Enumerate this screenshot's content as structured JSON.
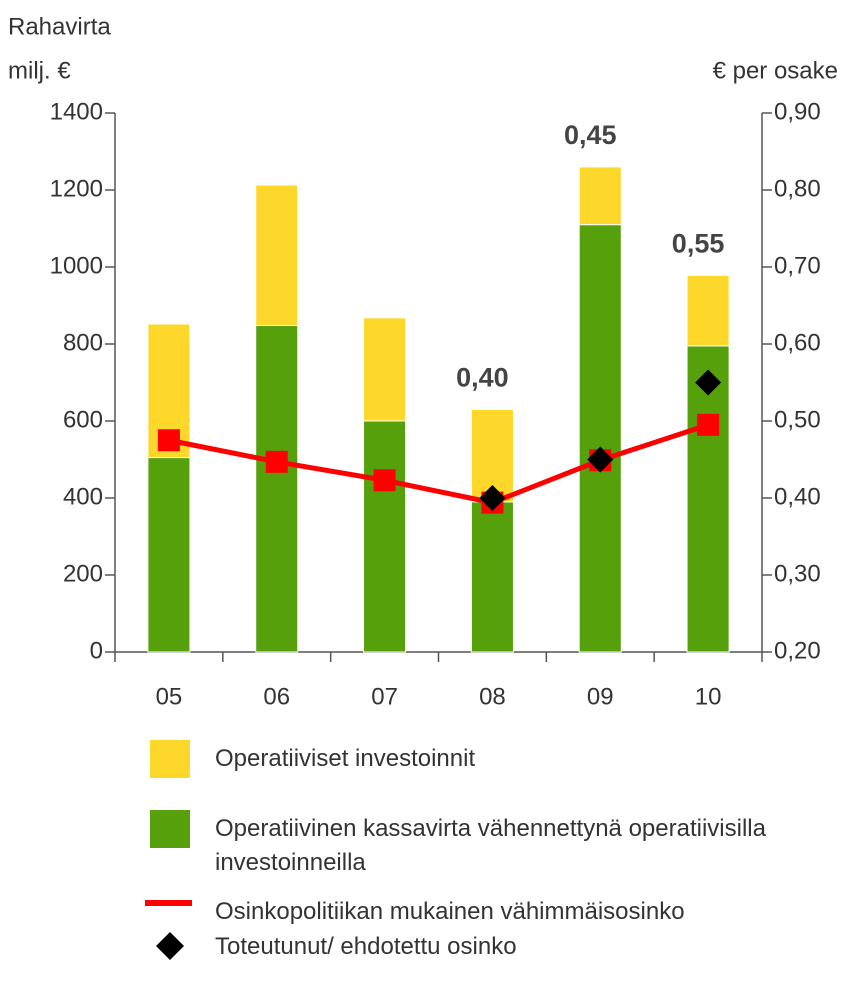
{
  "chart_data": {
    "type": "bar",
    "y_label": [
      "Rahavirta",
      "milj. €"
    ],
    "y2_label": "€ per osake",
    "categories": [
      "05",
      "06",
      "07",
      "08",
      "09",
      "10"
    ],
    "series": [
      {
        "name": "Operatiiviset investoinnit",
        "type": "bar",
        "color": "#fdd82b",
        "values": [
          347,
          365,
          268,
          240,
          150,
          183
        ]
      },
      {
        "name": "Operatiivinen kassavirta vähennettynä operatiivisilla investoinneilla",
        "type": "bar",
        "color": "#55a00b",
        "values": [
          505,
          848,
          600,
          390,
          1110,
          795
        ]
      },
      {
        "name": "Osinkopolitiikan mukainen vähimmäisosinko",
        "type": "line",
        "axis": "y2",
        "color": "#ff0000",
        "values": [
          0.475,
          0.447,
          0.423,
          0.394,
          0.449,
          0.495
        ]
      },
      {
        "name": "Toteutunut/ ehdotettu osinko",
        "type": "scatter",
        "axis": "y2",
        "color": "#000000",
        "values": [
          null,
          null,
          null,
          0.4,
          0.45,
          0.55
        ],
        "value_labels": [
          null,
          null,
          null,
          "0,40",
          "0,45",
          "0,55"
        ]
      }
    ],
    "ylim": [
      0,
      1400
    ],
    "yticks": [
      0,
      200,
      400,
      600,
      800,
      1000,
      1200,
      1400
    ],
    "y2lim": [
      0.2,
      0.9
    ],
    "y2ticks": [
      {
        "value": 0.2,
        "label": "0,20"
      },
      {
        "value": 0.3,
        "label": "0,30"
      },
      {
        "value": 0.4,
        "label": "0,40"
      },
      {
        "value": 0.5,
        "label": "0,50"
      },
      {
        "value": 0.6,
        "label": "0,60"
      },
      {
        "value": 0.7,
        "label": "0,70"
      },
      {
        "value": 0.8,
        "label": "0,80"
      },
      {
        "value": 0.9,
        "label": "0,90"
      }
    ]
  }
}
